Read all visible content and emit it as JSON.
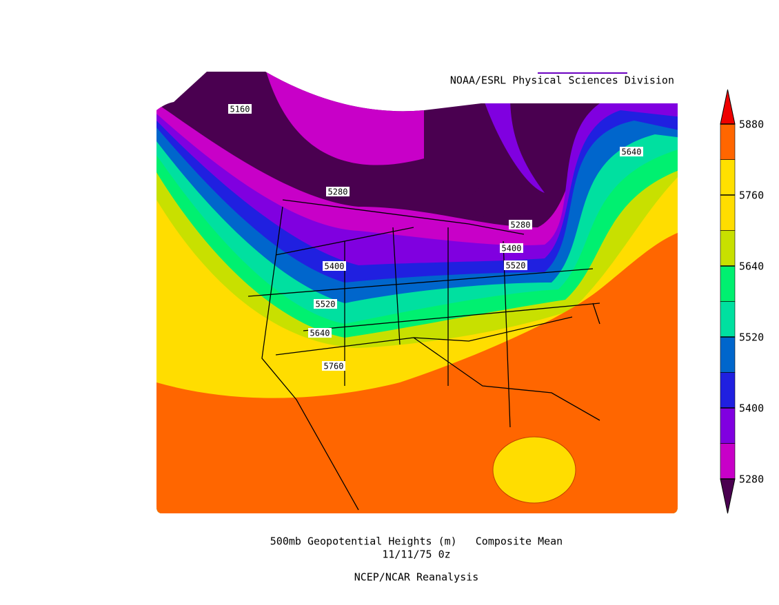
{
  "header": {
    "credit": "NOAA/ESRL Physical Sciences Division"
  },
  "map": {
    "contour_labels": [
      5160,
      5280,
      5280,
      5640,
      5400,
      5520,
      5400,
      5520,
      5640,
      5760
    ]
  },
  "colorbar": {
    "ticks": [
      5280,
      5400,
      5520,
      5640,
      5760,
      5880
    ],
    "colors": [
      "#4a0050",
      "#c800c8",
      "#8000e0",
      "#2020e0",
      "#0066cc",
      "#00e0a0",
      "#00f070",
      "#c8e000",
      "#ffdd00",
      "#ffe000",
      "#ff6600",
      "#ee0000"
    ]
  },
  "footer": {
    "title": "500mb Geopotential Heights (m)   Composite Mean",
    "date": "11/11/75 0z",
    "source": "NCEP/NCAR Reanalysis"
  }
}
